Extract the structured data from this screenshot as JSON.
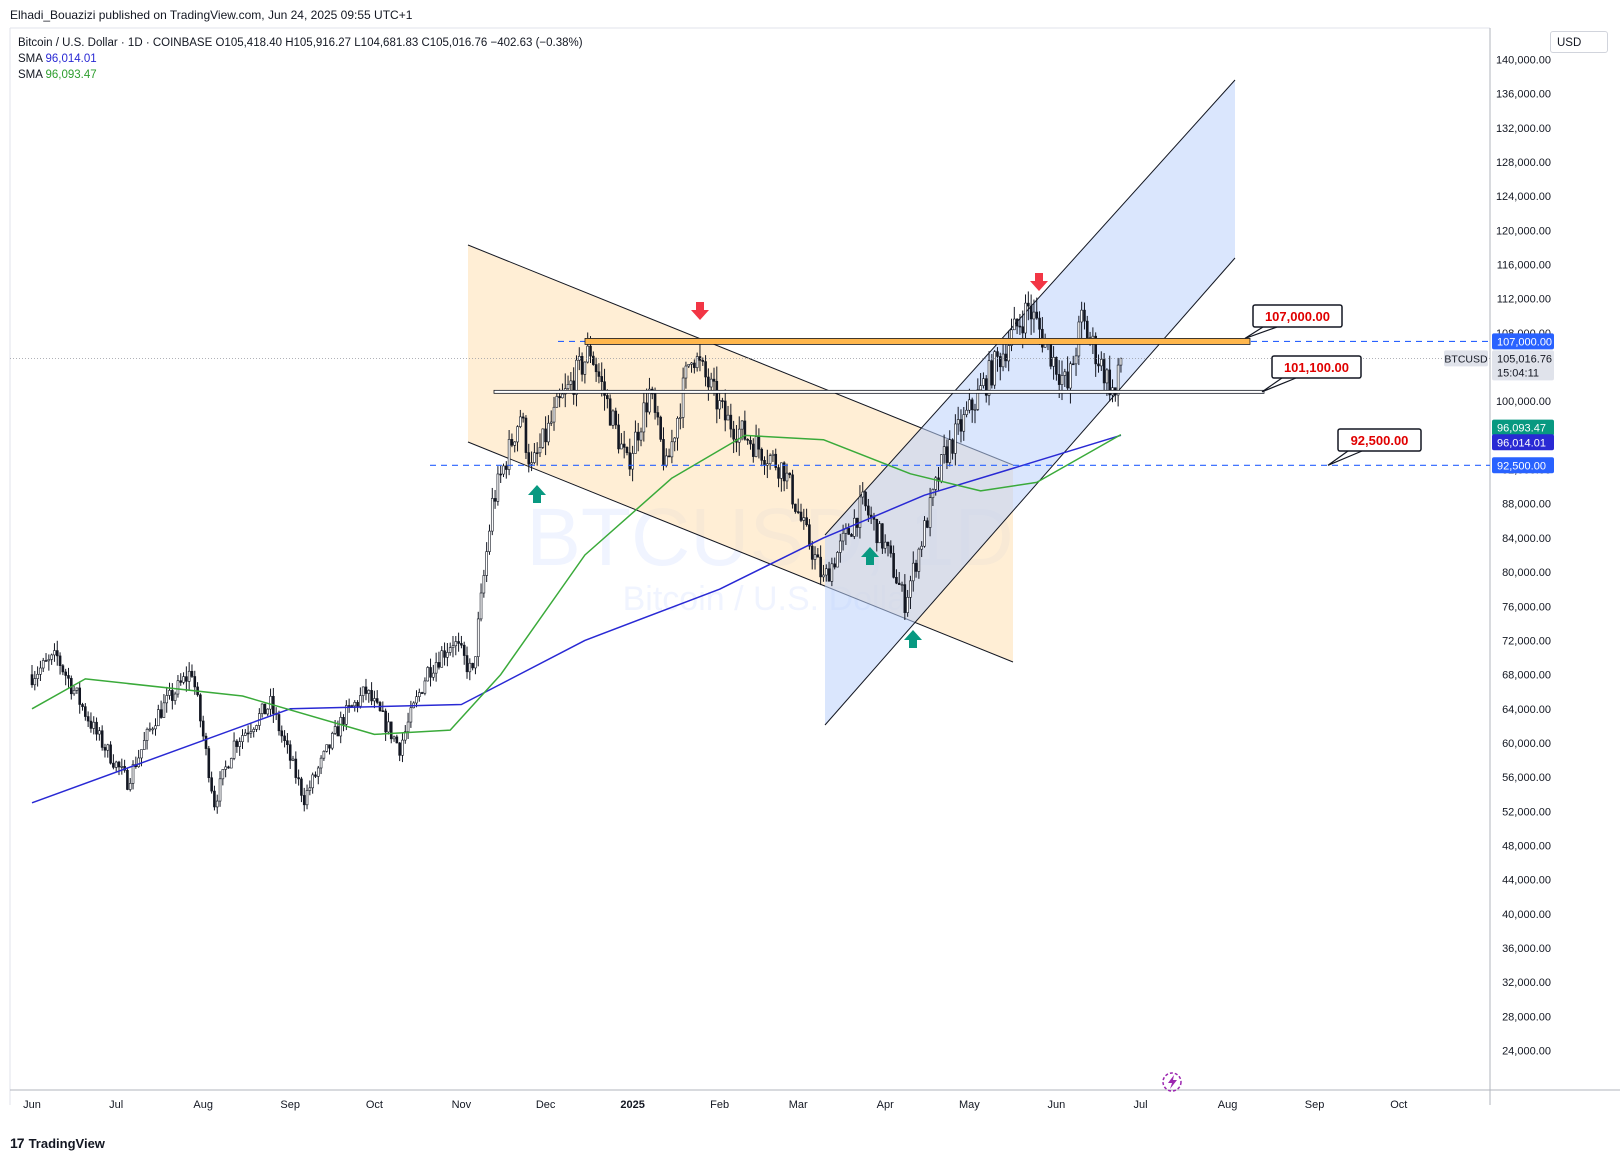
{
  "header": {
    "publisher": "Elhadi_Bouazizi published on TradingView.com, Jun 24, 2025 09:55 UTC+1"
  },
  "legend": {
    "symbol": "Bitcoin / U.S. Dollar · 1D · COINBASE",
    "open": "O105,418.40",
    "high": "H105,916.27",
    "low": "L104,681.83",
    "close": "C105,016.76",
    "change": "−402.63 (−0.38%)",
    "sma1_label": "SMA",
    "sma1_value": "96,014.01",
    "sma2_label": "SMA",
    "sma2_value": "96,093.47"
  },
  "currency": "USD",
  "watermark": {
    "ticker": "BTCUSD, 1D",
    "name": "Bitcoin / U.S. Dollar"
  },
  "brand": "TradingView",
  "colors": {
    "up": "#ffffff",
    "down": "#131722",
    "sma1": "#2929d4",
    "sma2": "#3aaa3a",
    "channel_down": "#ffe0b2",
    "channel_up": "#bbd2fb",
    "level_line": "#2962ff",
    "label_red": "#e00000",
    "arrow_red": "#f23645",
    "arrow_green": "#089981"
  },
  "chart_data": {
    "type": "candlestick",
    "symbol": "BTCUSD",
    "timeframe": "1D",
    "y_axis": {
      "min": 24000,
      "max": 140000,
      "ticks": [
        "140,000.00",
        "136,000.00",
        "132,000.00",
        "128,000.00",
        "124,000.00",
        "120,000.00",
        "116,000.00",
        "112,000.00",
        "108,000.00",
        "104,000.00",
        "100,000.00",
        "96,000.00",
        "92,000.00",
        "88,000.00",
        "84,000.00",
        "80,000.00",
        "76,000.00",
        "72,000.00",
        "68,000.00",
        "64,000.00",
        "60,000.00",
        "56,000.00",
        "52,000.00",
        "48,000.00",
        "44,000.00",
        "40,000.00",
        "36,000.00",
        "32,000.00",
        "28,000.00",
        "24,000.00"
      ]
    },
    "x_axis": {
      "labels": [
        "Jun",
        "Jul",
        "Aug",
        "Sep",
        "Oct",
        "Nov",
        "Dec",
        "2025",
        "Feb",
        "Mar",
        "Apr",
        "May",
        "Jun",
        "Jul",
        "Aug",
        "Sep",
        "Oct"
      ]
    },
    "price_keypoints": [
      [
        "2024-06-01",
        68000
      ],
      [
        "2024-06-10",
        70000
      ],
      [
        "2024-06-24",
        61000
      ],
      [
        "2024-07-05",
        55500
      ],
      [
        "2024-07-15",
        63000
      ],
      [
        "2024-07-28",
        68500
      ],
      [
        "2024-08-05",
        53000
      ],
      [
        "2024-08-12",
        60000
      ],
      [
        "2024-08-25",
        64500
      ],
      [
        "2024-09-06",
        53500
      ],
      [
        "2024-09-20",
        63000
      ],
      [
        "2024-09-28",
        66000
      ],
      [
        "2024-10-10",
        59500
      ],
      [
        "2024-10-20",
        68500
      ],
      [
        "2024-10-29",
        72000
      ],
      [
        "2024-11-05",
        68000
      ],
      [
        "2024-11-12",
        88000
      ],
      [
        "2024-11-22",
        98500
      ],
      [
        "2024-11-26",
        92000
      ],
      [
        "2024-12-05",
        99000
      ],
      [
        "2024-12-17",
        106000
      ],
      [
        "2024-12-30",
        92500
      ],
      [
        "2025-01-07",
        101000
      ],
      [
        "2025-01-13",
        92000
      ],
      [
        "2025-01-22",
        106000
      ],
      [
        "2025-02-03",
        98000
      ],
      [
        "2025-02-24",
        92000
      ],
      [
        "2025-03-02",
        86000
      ],
      [
        "2025-03-10",
        79000
      ],
      [
        "2025-03-24",
        88000
      ],
      [
        "2025-04-01",
        83000
      ],
      [
        "2025-04-08",
        76500
      ],
      [
        "2025-04-22",
        93500
      ],
      [
        "2025-05-08",
        103000
      ],
      [
        "2025-05-22",
        111000
      ],
      [
        "2025-06-05",
        101500
      ],
      [
        "2025-06-10",
        109500
      ],
      [
        "2025-06-22",
        100500
      ],
      [
        "2025-06-24",
        105016.76
      ]
    ],
    "series": [
      {
        "name": "SMA",
        "last_value": 96014.01,
        "points": [
          [
            "2024-06-01",
            53000
          ],
          [
            "2024-09-01",
            64000
          ],
          [
            "2024-11-01",
            64500
          ],
          [
            "2024-12-15",
            72000
          ],
          [
            "2025-02-01",
            78000
          ],
          [
            "2025-03-10",
            84000
          ],
          [
            "2025-04-15",
            89000
          ],
          [
            "2025-05-15",
            92000
          ],
          [
            "2025-06-24",
            96014.01
          ]
        ]
      },
      {
        "name": "SMA",
        "last_value": 96093.47,
        "points": [
          [
            "2024-06-01",
            64000
          ],
          [
            "2024-06-20",
            67500
          ],
          [
            "2024-08-15",
            65500
          ],
          [
            "2024-10-01",
            61000
          ],
          [
            "2024-10-28",
            61500
          ],
          [
            "2024-11-15",
            68000
          ],
          [
            "2024-12-15",
            82000
          ],
          [
            "2025-01-15",
            91000
          ],
          [
            "2025-02-10",
            96000
          ],
          [
            "2025-03-10",
            95500
          ],
          [
            "2025-04-10",
            91500
          ],
          [
            "2025-05-05",
            89500
          ],
          [
            "2025-05-25",
            90500
          ],
          [
            "2025-06-24",
            96093.47
          ]
        ]
      }
    ],
    "horizontal_levels": [
      {
        "value": 107000,
        "label": "107,000.00"
      },
      {
        "value": 101100,
        "label": "101,100.00"
      },
      {
        "value": 92500,
        "label": "92,500.00"
      }
    ],
    "price_tags": [
      {
        "label": "107,000.00",
        "value": 107000,
        "color": "#2962ff"
      },
      {
        "symbol": "BTCUSD",
        "label": "105,016.76",
        "value": 105016.76,
        "countdown": "15:04:11",
        "color": "#e0e3eb"
      },
      {
        "label": "96,093.47",
        "value": 96093.47,
        "color": "#089981"
      },
      {
        "label": "96,014.01",
        "value": 96014.01,
        "color": "#2929d4"
      },
      {
        "label": "92,500.00",
        "value": 92500,
        "color": "#2962ff"
      }
    ]
  }
}
